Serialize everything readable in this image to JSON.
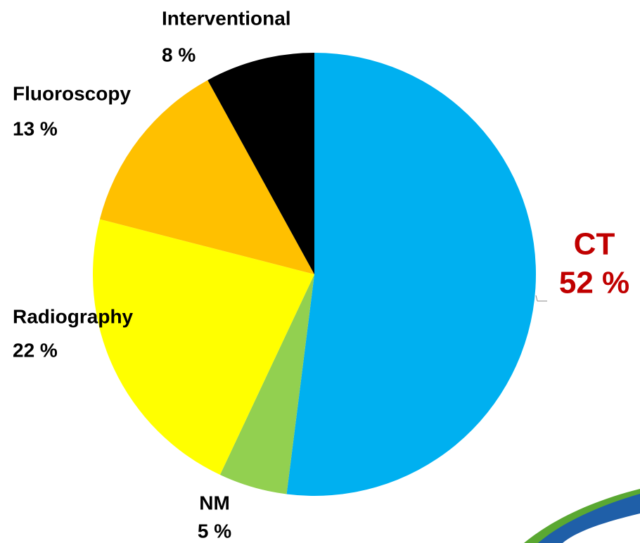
{
  "chart_data": {
    "type": "pie",
    "categories": [
      "CT",
      "NM",
      "Radiography",
      "Fluoroscopy",
      "Interventional"
    ],
    "values": [
      52,
      5,
      22,
      13,
      8
    ],
    "value_labels": [
      "52 %",
      "5 %",
      "22 %",
      "13 %",
      "8 %"
    ],
    "colors": [
      "#00b0f0",
      "#92d050",
      "#ffff00",
      "#ffc000",
      "#000000"
    ],
    "label_colors": [
      "#c00000",
      "#000000",
      "#000000",
      "#000000",
      "#000000"
    ]
  }
}
